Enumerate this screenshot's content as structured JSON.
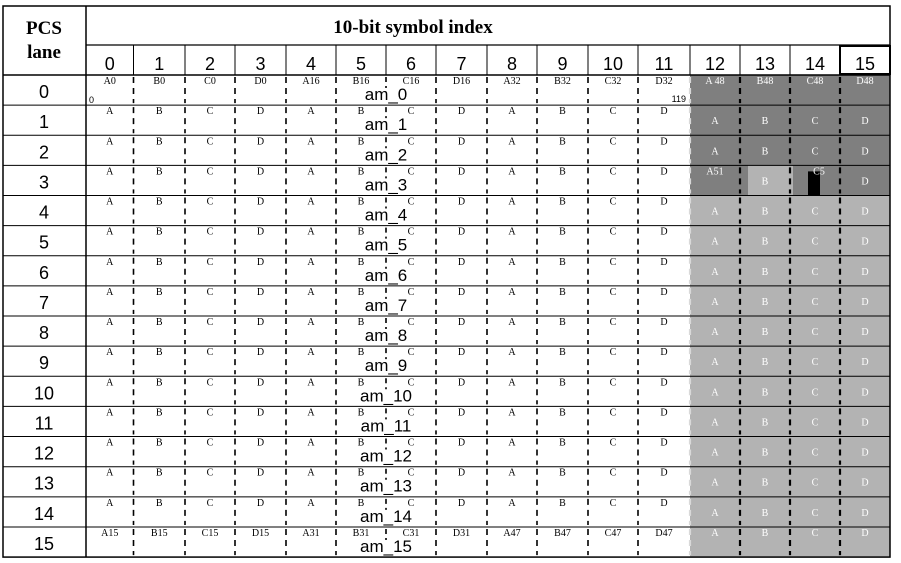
{
  "header": {
    "corner_title_line1": "PCS",
    "corner_title_line2": "lane",
    "title": "10-bit symbol index"
  },
  "columns": [
    "0",
    "1",
    "2",
    "3",
    "4",
    "5",
    "6",
    "7",
    "8",
    "9",
    "10",
    "11",
    "12",
    "13",
    "14",
    "15"
  ],
  "lanes": [
    "0",
    "1",
    "2",
    "3",
    "4",
    "5",
    "6",
    "7",
    "8",
    "9",
    "10",
    "11",
    "12",
    "13",
    "14",
    "15"
  ],
  "am_labels": [
    "am_0",
    "am_1",
    "am_2",
    "am_3",
    "am_4",
    "am_5",
    "am_6",
    "am_7",
    "am_8",
    "am_9",
    "am_10",
    "am_11",
    "am_12",
    "am_13",
    "am_14",
    "am_15"
  ],
  "row_first_letters": [
    "A0",
    "B0",
    "C0",
    "D0",
    "A16",
    "B16",
    "C16",
    "D16",
    "A32",
    "B32",
    "C32",
    "D32",
    "A 48",
    "B48",
    "C48",
    "D48"
  ],
  "row_last_letters": [
    "A15",
    "B15",
    "C15",
    "D15",
    "A31",
    "B31",
    "C31",
    "D31",
    "A47",
    "B47",
    "C47",
    "D47",
    "A",
    "B",
    "C",
    "D"
  ],
  "mid_letters": [
    "A",
    "B",
    "C",
    "D",
    "A",
    "B",
    "C",
    "D",
    "A",
    "B",
    "C",
    "D",
    "A",
    "B",
    "C",
    "D"
  ],
  "lane3_special": {
    "col12": "A51",
    "col14": "C5"
  },
  "bit_index_start": "0",
  "bit_index_end": "119",
  "colors": {
    "dark_gray": "#7f7f7f",
    "light_gray": "#b3b3b3",
    "black": "#000000",
    "white": "#ffffff"
  }
}
